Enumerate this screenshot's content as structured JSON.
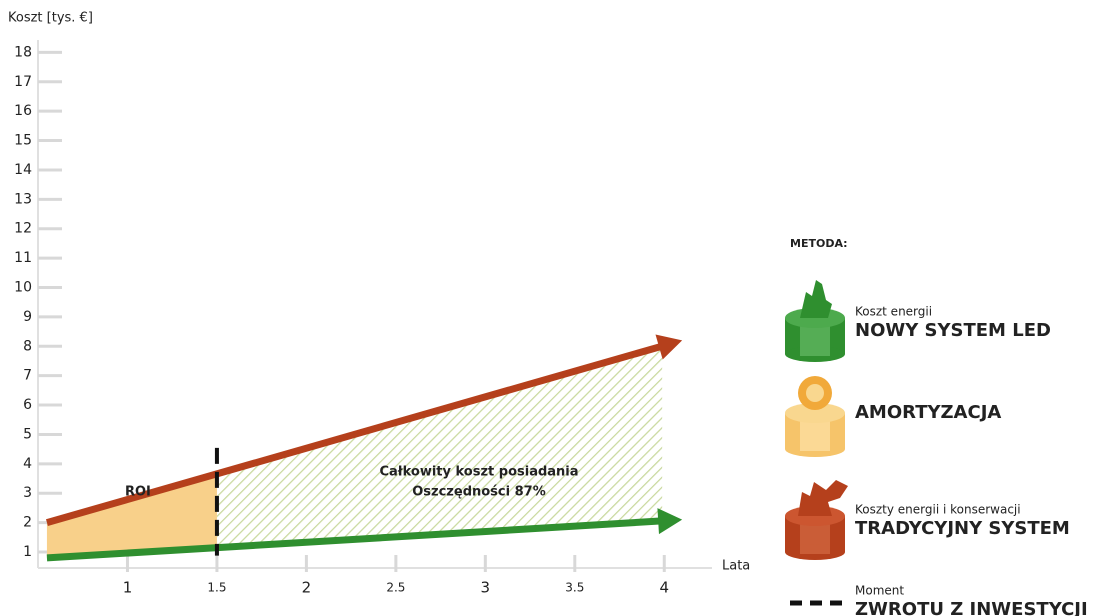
{
  "chart_data": {
    "type": "line",
    "y_label": "Koszt [tys. €]",
    "x_label": "Lata",
    "xlim": [
      0.5,
      4.25
    ],
    "ylim": [
      0.5,
      18.5
    ],
    "xticks": [
      1,
      1.5,
      2,
      2.5,
      3,
      3.5,
      4
    ],
    "yticks": [
      1,
      2,
      3,
      4,
      5,
      6,
      7,
      8,
      9,
      10,
      11,
      12,
      13,
      14,
      15,
      16,
      17,
      18
    ],
    "series": [
      {
        "name": "NOWY SYSTEM LED",
        "caption": "Koszt energii",
        "color": "#2f8f2f",
        "x": [
          0.55,
          4.1
        ],
        "values": [
          0.8,
          2.1
        ]
      },
      {
        "name": "TRADYCYJNY SYSTEM",
        "caption": "Koszty energii i konserwacji",
        "color": "#b5401c",
        "x": [
          0.55,
          4.1
        ],
        "values": [
          2,
          8.2
        ]
      }
    ],
    "amortization": {
      "name": "AMORTYZACJA",
      "color": "#f8d08a"
    },
    "roi": {
      "x": 1.5,
      "label": "ROI",
      "legend_caption": "Moment",
      "legend_name": "ZWROTU Z INWESTYCJI"
    },
    "savings": {
      "lines": [
        "Całkowity koszt posiadania",
        "Oszczędności 87%"
      ],
      "color": "#c9d99e"
    },
    "legend_title": "METODA:"
  }
}
